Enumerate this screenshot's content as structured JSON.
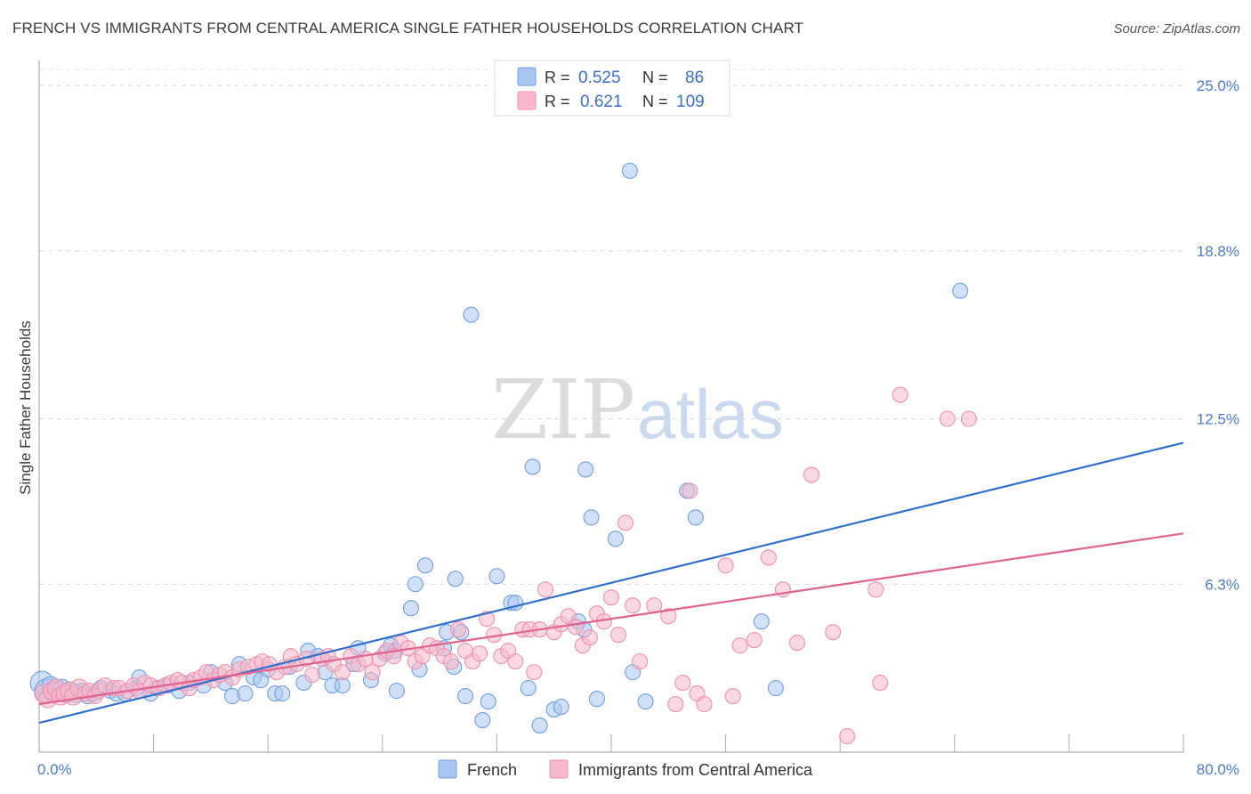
{
  "header": {
    "title": "FRENCH VS IMMIGRANTS FROM CENTRAL AMERICA SINGLE FATHER HOUSEHOLDS CORRELATION CHART",
    "source": "Source: ZipAtlas.com"
  },
  "watermark": {
    "zip": "ZIP",
    "atlas": "atlas"
  },
  "legend": {
    "r_label": "R =",
    "n_label": "N =",
    "rows": [
      {
        "r": "0.525",
        "n": "86",
        "color": "#a9c6f0"
      },
      {
        "r": "0.621",
        "n": "109",
        "color": "#f6b8cb"
      }
    ]
  },
  "bottom_legend": [
    "French",
    "Immigrants from Central America"
  ],
  "chart_data": {
    "type": "scatter",
    "title": "FRENCH VS IMMIGRANTS FROM CENTRAL AMERICA SINGLE FATHER HOUSEHOLDS CORRELATION CHART",
    "xlabel": "",
    "ylabel": "Single Father Households",
    "xlim": [
      0,
      80
    ],
    "ylim": [
      0,
      25.0
    ],
    "x_tick_labels": [
      "0.0%",
      "80.0%"
    ],
    "y_tick_labels": [
      "6.3%",
      "12.5%",
      "18.8%",
      "25.0%"
    ],
    "y_ticks": [
      6.3,
      12.5,
      18.8,
      25.0
    ],
    "grid": true,
    "legend_position": "top-center",
    "series": [
      {
        "name": "French",
        "color": "#6f9fe0",
        "fill": "#a9c6f0",
        "line_color": "#2f6fce",
        "trend": {
          "x": [
            0,
            80
          ],
          "y": [
            1.1,
            11.6
          ]
        },
        "points": [
          [
            0.2,
            2.6
          ],
          [
            0.5,
            2.3
          ],
          [
            0.8,
            2.5
          ],
          [
            1.0,
            2.2
          ],
          [
            1.3,
            2.3
          ],
          [
            1.6,
            2.4
          ],
          [
            1.9,
            2.2
          ],
          [
            2.2,
            2.3
          ],
          [
            2.6,
            2.2
          ],
          [
            3.0,
            2.3
          ],
          [
            3.4,
            2.1
          ],
          [
            3.8,
            2.2
          ],
          [
            4.3,
            2.4
          ],
          [
            5.0,
            2.3
          ],
          [
            5.4,
            2.2
          ],
          [
            6.0,
            2.2
          ],
          [
            6.8,
            2.4
          ],
          [
            7.0,
            2.8
          ],
          [
            7.8,
            2.2
          ],
          [
            8.2,
            2.4
          ],
          [
            9.0,
            2.5
          ],
          [
            9.8,
            2.3
          ],
          [
            10.5,
            2.6
          ],
          [
            11.5,
            2.5
          ],
          [
            12.0,
            3.0
          ],
          [
            13.0,
            2.6
          ],
          [
            13.5,
            2.1
          ],
          [
            14.0,
            3.3
          ],
          [
            14.4,
            2.2
          ],
          [
            15.0,
            2.8
          ],
          [
            15.5,
            2.7
          ],
          [
            16.0,
            3.1
          ],
          [
            16.5,
            2.2
          ],
          [
            17.0,
            2.2
          ],
          [
            17.5,
            3.2
          ],
          [
            18.5,
            2.6
          ],
          [
            18.8,
            3.8
          ],
          [
            19.5,
            3.6
          ],
          [
            20.0,
            3.0
          ],
          [
            20.5,
            2.5
          ],
          [
            21.2,
            2.5
          ],
          [
            22.0,
            3.3
          ],
          [
            22.3,
            3.9
          ],
          [
            23.2,
            2.7
          ],
          [
            24.2,
            3.7
          ],
          [
            24.6,
            4.0
          ],
          [
            24.9,
            3.8
          ],
          [
            25.0,
            2.3
          ],
          [
            26.0,
            5.4
          ],
          [
            26.3,
            6.3
          ],
          [
            26.6,
            3.1
          ],
          [
            27.0,
            7.0
          ],
          [
            28.3,
            3.9
          ],
          [
            28.5,
            4.5
          ],
          [
            29.0,
            3.2
          ],
          [
            29.1,
            6.5
          ],
          [
            29.5,
            4.5
          ],
          [
            29.8,
            2.1
          ],
          [
            30.2,
            16.4
          ],
          [
            31.0,
            1.2
          ],
          [
            31.4,
            1.9
          ],
          [
            32.0,
            6.6
          ],
          [
            33.0,
            5.6
          ],
          [
            33.3,
            5.6
          ],
          [
            34.2,
            2.4
          ],
          [
            34.5,
            10.7
          ],
          [
            35.0,
            1.0
          ],
          [
            36.0,
            1.6
          ],
          [
            36.5,
            1.7
          ],
          [
            37.7,
            4.9
          ],
          [
            38.1,
            4.6
          ],
          [
            38.2,
            10.6
          ],
          [
            38.6,
            8.8
          ],
          [
            39.0,
            2.0
          ],
          [
            40.3,
            8.0
          ],
          [
            41.3,
            21.8
          ],
          [
            41.5,
            3.0
          ],
          [
            42.4,
            1.9
          ],
          [
            45.3,
            9.8
          ],
          [
            45.9,
            8.8
          ],
          [
            50.5,
            4.9
          ],
          [
            51.5,
            2.4
          ],
          [
            64.4,
            17.3
          ]
        ]
      },
      {
        "name": "Immigrants from Central America",
        "color": "#ef8faf",
        "fill": "#f6b8cb",
        "line_color": "#e0628e",
        "trend": {
          "x": [
            0,
            80
          ],
          "y": [
            1.8,
            8.2
          ]
        },
        "points": [
          [
            0.3,
            2.2
          ],
          [
            0.6,
            2.0
          ],
          [
            0.9,
            2.3
          ],
          [
            1.2,
            2.4
          ],
          [
            1.5,
            2.1
          ],
          [
            1.8,
            2.2
          ],
          [
            2.1,
            2.3
          ],
          [
            2.4,
            2.1
          ],
          [
            2.8,
            2.4
          ],
          [
            3.2,
            2.2
          ],
          [
            3.5,
            2.3
          ],
          [
            3.9,
            2.1
          ],
          [
            4.2,
            2.3
          ],
          [
            4.6,
            2.5
          ],
          [
            5.2,
            2.4
          ],
          [
            5.6,
            2.4
          ],
          [
            6.2,
            2.3
          ],
          [
            6.6,
            2.5
          ],
          [
            7.0,
            2.3
          ],
          [
            7.4,
            2.6
          ],
          [
            7.8,
            2.5
          ],
          [
            8.4,
            2.4
          ],
          [
            8.8,
            2.5
          ],
          [
            9.2,
            2.6
          ],
          [
            9.7,
            2.7
          ],
          [
            10.0,
            2.6
          ],
          [
            10.5,
            2.4
          ],
          [
            10.8,
            2.7
          ],
          [
            11.3,
            2.8
          ],
          [
            11.7,
            3.0
          ],
          [
            12.2,
            2.7
          ],
          [
            12.6,
            2.9
          ],
          [
            13.0,
            3.0
          ],
          [
            13.5,
            2.8
          ],
          [
            14.0,
            3.1
          ],
          [
            14.6,
            3.2
          ],
          [
            15.2,
            3.3
          ],
          [
            15.6,
            3.4
          ],
          [
            16.1,
            3.3
          ],
          [
            16.6,
            3.0
          ],
          [
            17.2,
            3.2
          ],
          [
            17.6,
            3.6
          ],
          [
            18.0,
            3.3
          ],
          [
            18.7,
            3.5
          ],
          [
            19.1,
            2.9
          ],
          [
            19.8,
            3.5
          ],
          [
            20.2,
            3.6
          ],
          [
            20.6,
            3.3
          ],
          [
            21.2,
            3.0
          ],
          [
            21.8,
            3.6
          ],
          [
            22.3,
            3.3
          ],
          [
            22.8,
            3.5
          ],
          [
            23.3,
            3.0
          ],
          [
            23.8,
            3.5
          ],
          [
            24.3,
            3.8
          ],
          [
            24.8,
            3.6
          ],
          [
            25.3,
            4.1
          ],
          [
            25.8,
            3.9
          ],
          [
            26.3,
            3.4
          ],
          [
            26.8,
            3.6
          ],
          [
            27.3,
            4.0
          ],
          [
            27.8,
            3.9
          ],
          [
            28.3,
            3.6
          ],
          [
            28.8,
            3.4
          ],
          [
            29.3,
            4.6
          ],
          [
            29.8,
            3.8
          ],
          [
            30.3,
            3.4
          ],
          [
            30.8,
            3.7
          ],
          [
            31.3,
            5.0
          ],
          [
            31.8,
            4.4
          ],
          [
            32.3,
            3.6
          ],
          [
            32.8,
            3.8
          ],
          [
            33.3,
            3.4
          ],
          [
            33.8,
            4.6
          ],
          [
            34.3,
            4.6
          ],
          [
            34.6,
            3.0
          ],
          [
            35.0,
            4.6
          ],
          [
            35.4,
            6.1
          ],
          [
            36.0,
            4.5
          ],
          [
            36.5,
            4.8
          ],
          [
            37.0,
            5.1
          ],
          [
            37.5,
            4.7
          ],
          [
            38.0,
            4.0
          ],
          [
            38.5,
            4.3
          ],
          [
            39.0,
            5.2
          ],
          [
            39.5,
            4.9
          ],
          [
            40.0,
            5.8
          ],
          [
            40.5,
            4.4
          ],
          [
            41.0,
            8.6
          ],
          [
            41.5,
            5.5
          ],
          [
            42.0,
            3.4
          ],
          [
            43.0,
            5.5
          ],
          [
            44.0,
            5.1
          ],
          [
            44.5,
            1.8
          ],
          [
            45.0,
            2.6
          ],
          [
            45.5,
            9.8
          ],
          [
            46.0,
            2.2
          ],
          [
            46.5,
            1.8
          ],
          [
            48.0,
            7.0
          ],
          [
            48.5,
            2.1
          ],
          [
            49.0,
            4.0
          ],
          [
            50.0,
            4.2
          ],
          [
            51.0,
            7.3
          ],
          [
            52.0,
            6.1
          ],
          [
            53.0,
            4.1
          ],
          [
            54.0,
            10.4
          ],
          [
            55.5,
            4.5
          ],
          [
            56.5,
            0.6
          ],
          [
            58.5,
            6.1
          ],
          [
            58.8,
            2.6
          ],
          [
            60.2,
            13.4
          ],
          [
            63.5,
            12.5
          ],
          [
            65.0,
            12.5
          ]
        ]
      }
    ]
  }
}
